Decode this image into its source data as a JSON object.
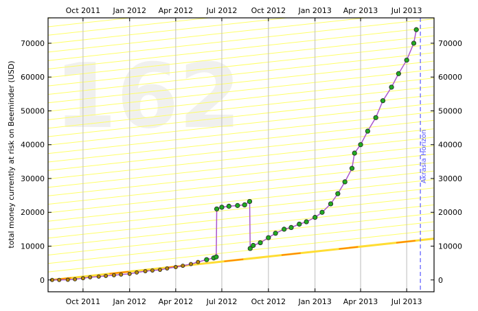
{
  "chart_data": {
    "type": "line",
    "ylabel": "total money currently at risk on Beeminder (USD)",
    "watermark": "162",
    "horizon_label": "Akrasia Horizon",
    "x_ticks": [
      "Oct 2011",
      "Jan 2012",
      "Apr 2012",
      "Jul 2012",
      "Oct 2012",
      "Jan 2013",
      "Apr 2013",
      "Jul 2013"
    ],
    "x_tick_dates": [
      "2011-10-01",
      "2012-01-01",
      "2012-04-01",
      "2012-07-01",
      "2012-10-01",
      "2013-01-01",
      "2013-04-01",
      "2013-07-01"
    ],
    "xlim": [
      "2011-07-24",
      "2013-08-24"
    ],
    "horizon_date": "2013-07-28",
    "y_ticks": [
      0,
      10000,
      20000,
      30000,
      40000,
      50000,
      60000,
      70000
    ],
    "ylim": [
      -3500,
      77500
    ],
    "grid": "vertical",
    "colors": {
      "datapoint_fill": "#22aa22",
      "early_point_fill": "#b8860b",
      "datapoint_stroke": "#222222",
      "line": "#aa55cc",
      "road": "#ffdd33",
      "road_dash": "#ff8800",
      "guideline": "#ffff66",
      "horizon": "#5555ff",
      "grid": "#bbbbbb"
    },
    "road": {
      "start": [
        "2011-08-01",
        0
      ],
      "end": [
        "2013-08-24",
        12200
      ]
    },
    "series": [
      {
        "x": [
          "2011-08-01",
          "2011-08-15",
          "2011-09-01",
          "2011-09-15",
          "2011-10-01",
          "2011-10-15",
          "2011-11-01",
          "2011-11-15",
          "2011-12-01",
          "2011-12-15",
          "2012-01-01",
          "2012-01-15",
          "2012-02-01",
          "2012-02-15",
          "2012-03-01",
          "2012-03-15",
          "2012-04-01",
          "2012-04-15",
          "2012-05-01",
          "2012-05-15",
          "2012-06-01",
          "2012-06-15",
          "2012-06-20",
          "2012-06-21",
          "2012-07-01",
          "2012-07-15",
          "2012-08-01",
          "2012-08-15",
          "2012-08-25",
          "2012-08-26",
          "2012-09-01",
          "2012-09-15",
          "2012-10-01",
          "2012-10-15",
          "2012-11-01",
          "2012-11-15",
          "2012-12-01",
          "2012-12-15",
          "2013-01-01",
          "2013-01-15",
          "2013-02-01",
          "2013-02-15",
          "2013-03-01",
          "2013-03-15",
          "2013-03-20",
          "2013-04-01",
          "2013-04-15",
          "2013-05-01",
          "2013-05-15",
          "2013-06-01",
          "2013-06-15",
          "2013-07-01",
          "2013-07-15",
          "2013-07-20"
        ],
        "y": [
          0,
          0,
          50,
          200,
          500,
          800,
          1000,
          1200,
          1400,
          1600,
          1800,
          2200,
          2600,
          2800,
          3000,
          3400,
          3800,
          4200,
          4700,
          5300,
          6000,
          6500,
          6800,
          21000,
          21500,
          21800,
          22000,
          22200,
          23200,
          9300,
          10200,
          11000,
          12500,
          13800,
          15000,
          15500,
          16500,
          17200,
          18500,
          20000,
          22500,
          25500,
          29000,
          33000,
          37500,
          40000,
          44000,
          48000,
          53000,
          57000,
          61000,
          65000,
          70000,
          74000
        ]
      }
    ]
  }
}
